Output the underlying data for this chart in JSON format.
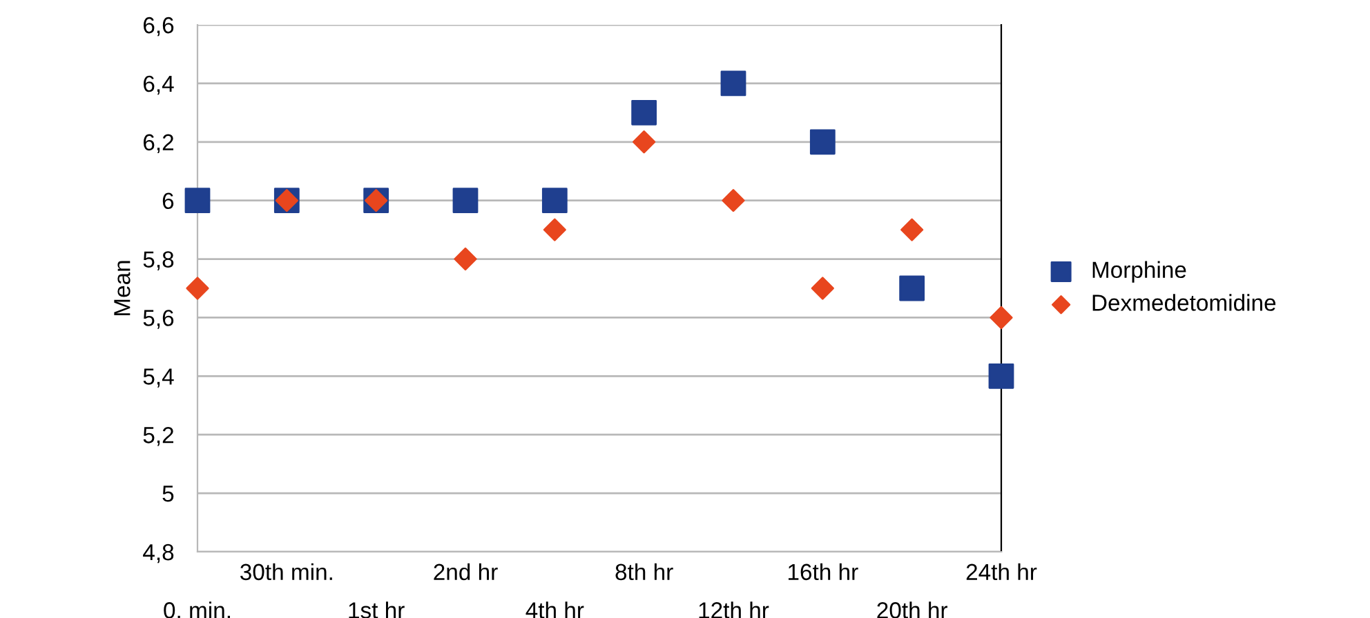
{
  "chart_data": {
    "type": "scatter",
    "ylabel": "Mean",
    "categories": [
      "0. min.",
      "30th min.",
      "1st hr",
      "2nd hr",
      "4th hr",
      "8th hr",
      "12th hr",
      "16th hr",
      "20th hr",
      "24th hr"
    ],
    "series": [
      {
        "name": "Morphine",
        "color": "#1f3f8f",
        "marker": "square",
        "values": [
          6,
          6,
          6,
          6,
          6,
          6.3,
          6.4,
          6.2,
          5.7,
          5.4
        ]
      },
      {
        "name": "Dexmedetomidine",
        "color": "#e8461e",
        "marker": "diamond",
        "values": [
          5.7,
          6,
          6,
          5.8,
          5.9,
          6.2,
          6,
          5.7,
          5.9,
          5.6
        ]
      }
    ],
    "ylim": [
      4.8,
      6.6
    ],
    "yticks": [
      {
        "value": 4.8,
        "label": "4,8"
      },
      5,
      {
        "value": 5.2,
        "label": "5,2"
      },
      {
        "value": 5.4,
        "label": "5,4"
      },
      {
        "value": 5.6,
        "label": "5,6"
      },
      {
        "value": 5.8,
        "label": "5,8"
      },
      6,
      {
        "value": 6.2,
        "label": "6,2"
      },
      {
        "value": 6.4,
        "label": "6,4"
      },
      {
        "value": 6.6,
        "label": "6,6"
      }
    ],
    "grid": "y",
    "legend": "right"
  }
}
